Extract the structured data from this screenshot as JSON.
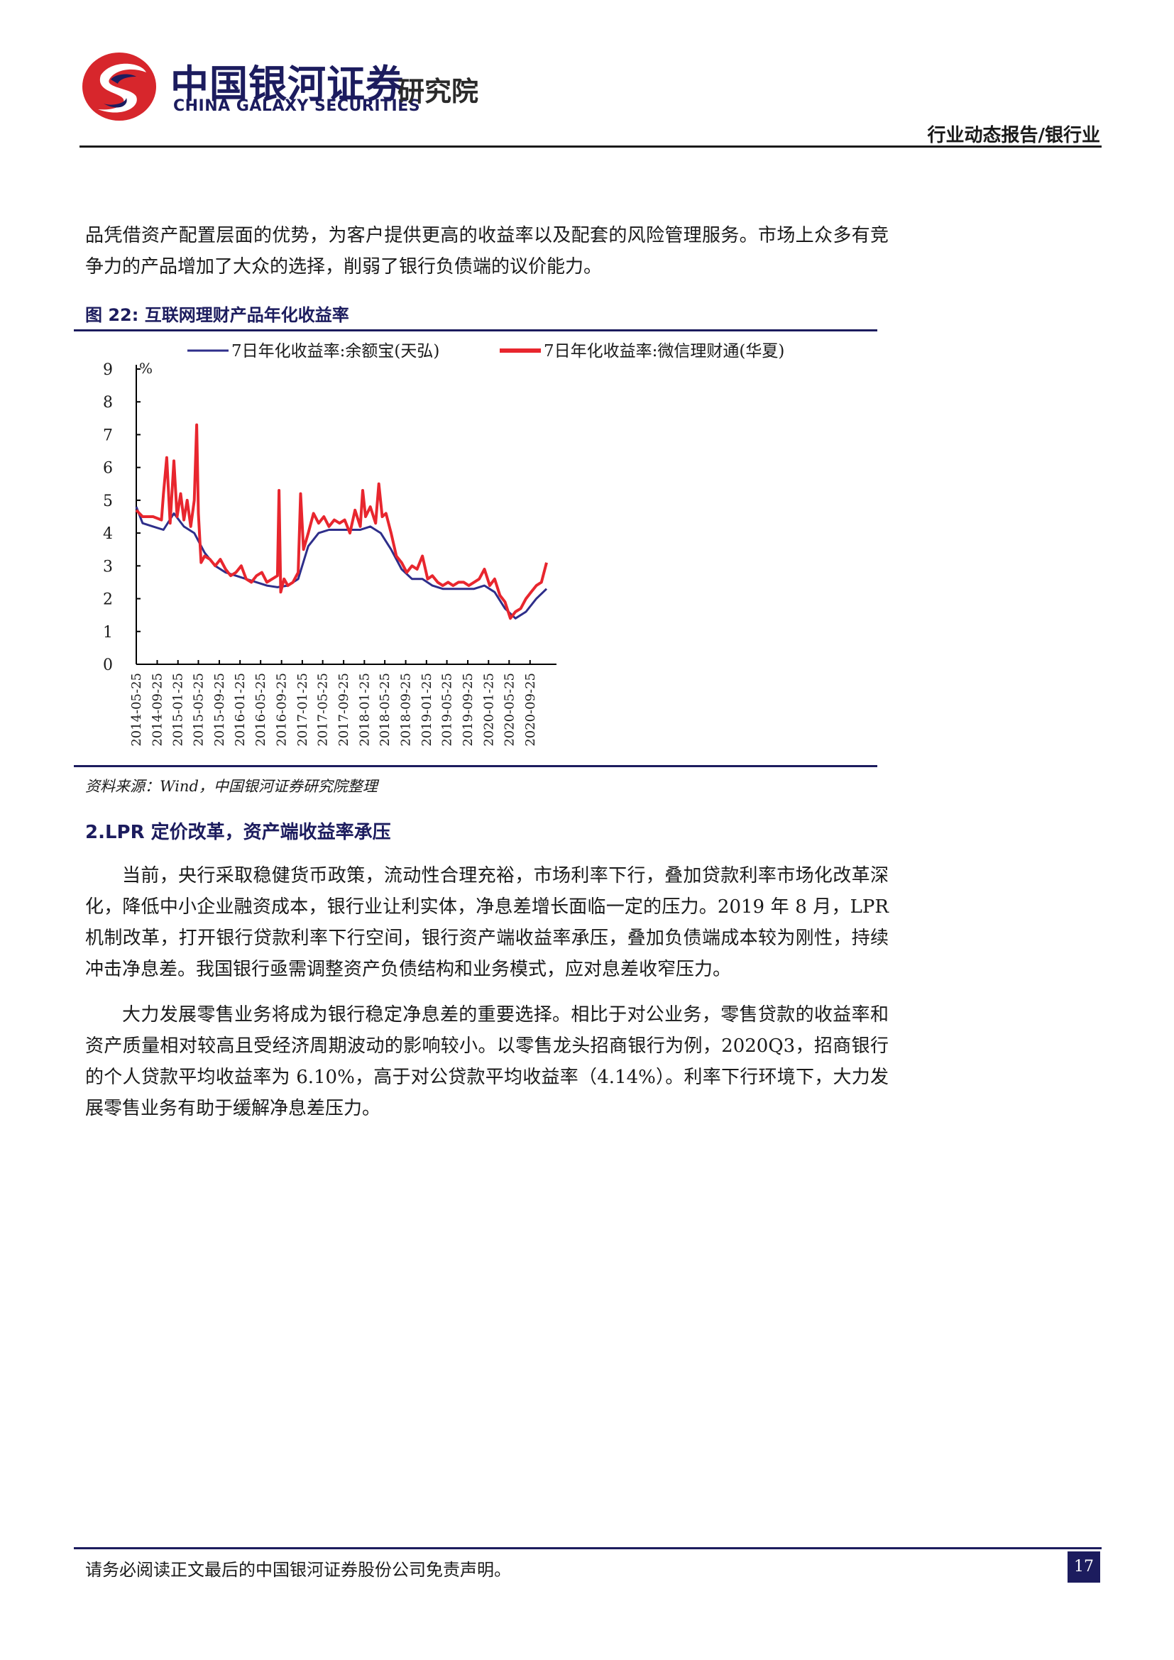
{
  "header": {
    "brand_cn": "中国银河证券",
    "brand_en": "CHINA GALAXY SECURITIES",
    "brand_institute": "研究院",
    "report_type": "行业动态报告/银行业",
    "colors": {
      "navy": "#1c1c5e",
      "red": "#d7262c"
    }
  },
  "body": {
    "para_1": "品凭借资产配置层面的优势，为客户提供更高的收益率以及配套的风险管理服务。市场上众多有竞争力的产品增加了大众的选择，削弱了银行负债端的议价能力。",
    "figure_title": "图 22:  互联网理财产品年化收益率",
    "figure_source": "资料来源：Wind，中国银河证券研究院整理",
    "section_heading": "2.LPR 定价改革，资产端收益率承压",
    "para_2": "当前，央行采取稳健货币政策，流动性合理充裕，市场利率下行，叠加贷款利率市场化改革深化，降低中小企业融资成本，银行业让利实体，净息差增长面临一定的压力。2019 年 8 月，LPR 机制改革，打开银行贷款利率下行空间，银行资产端收益率承压，叠加负债端成本较为刚性，持续冲击净息差。我国银行亟需调整资产负债结构和业务模式，应对息差收窄压力。",
    "para_3": "大力发展零售业务将成为银行稳定净息差的重要选择。相比于对公业务，零售贷款的收益率和资产质量相对较高且受经济周期波动的影响较小。以零售龙头招商银行为例，2020Q3，招商银行的个人贷款平均收益率为 6.10%，高于对公贷款平均收益率（4.14%）。利率下行环境下，大力发展零售业务有助于缓解净息差压力。"
  },
  "chart_data": {
    "type": "line",
    "title": "",
    "ylabel": "%",
    "xlabel": "",
    "ylim": [
      0,
      9
    ],
    "yticks": [
      0,
      1,
      2,
      3,
      4,
      5,
      6,
      7,
      8,
      9
    ],
    "xlim": [
      "2014-05-25",
      "2021-01-25"
    ],
    "xticks": [
      "2014-05-25",
      "2014-09-25",
      "2015-01-25",
      "2015-05-25",
      "2015-09-25",
      "2016-01-25",
      "2016-05-25",
      "2016-09-25",
      "2017-01-25",
      "2017-05-25",
      "2017-09-25",
      "2018-01-25",
      "2018-05-25",
      "2018-09-25",
      "2019-01-25",
      "2019-05-25",
      "2019-09-25",
      "2020-01-25",
      "2020-05-25",
      "2020-09-25"
    ],
    "legend_position": "top",
    "series": [
      {
        "name": "7日年化收益率:余额宝(天弘)",
        "color": "#2e2e8a",
        "x": [
          "2014-05-25",
          "2014-07-01",
          "2014-09-01",
          "2014-11-01",
          "2015-01-01",
          "2015-03-01",
          "2015-05-01",
          "2015-07-01",
          "2015-09-01",
          "2015-11-01",
          "2016-01-01",
          "2016-03-01",
          "2016-05-01",
          "2016-07-01",
          "2016-09-01",
          "2016-11-01",
          "2017-01-01",
          "2017-03-01",
          "2017-05-01",
          "2017-07-01",
          "2017-09-01",
          "2017-11-01",
          "2018-01-01",
          "2018-03-01",
          "2018-05-01",
          "2018-07-01",
          "2018-09-01",
          "2018-11-01",
          "2019-01-01",
          "2019-03-01",
          "2019-05-01",
          "2019-07-01",
          "2019-09-01",
          "2019-11-01",
          "2020-01-01",
          "2020-03-01",
          "2020-05-01",
          "2020-07-01",
          "2020-09-01",
          "2020-11-01",
          "2020-12-31"
        ],
        "values": [
          4.8,
          4.3,
          4.2,
          4.1,
          4.6,
          4.2,
          4.0,
          3.4,
          3.0,
          2.8,
          2.7,
          2.6,
          2.5,
          2.4,
          2.35,
          2.4,
          2.6,
          3.6,
          4.0,
          4.1,
          4.1,
          4.1,
          4.1,
          4.2,
          4.0,
          3.5,
          2.9,
          2.6,
          2.6,
          2.4,
          2.3,
          2.3,
          2.3,
          2.3,
          2.4,
          2.2,
          1.7,
          1.4,
          1.6,
          2.0,
          2.3
        ]
      },
      {
        "name": "7日年化收益率:微信理财通(华夏)",
        "color": "#e8262e",
        "x": [
          "2014-05-25",
          "2014-07-01",
          "2014-09-01",
          "2014-10-20",
          "2014-11-01",
          "2014-11-20",
          "2014-12-10",
          "2015-01-01",
          "2015-01-20",
          "2015-02-10",
          "2015-03-01",
          "2015-03-20",
          "2015-04-10",
          "2015-05-01",
          "2015-05-15",
          "2015-05-25",
          "2015-06-10",
          "2015-07-01",
          "2015-08-01",
          "2015-09-01",
          "2015-10-01",
          "2015-11-01",
          "2015-12-01",
          "2016-01-01",
          "2016-02-01",
          "2016-03-01",
          "2016-04-01",
          "2016-05-01",
          "2016-06-01",
          "2016-07-01",
          "2016-08-01",
          "2016-09-01",
          "2016-09-10",
          "2016-09-20",
          "2016-10-10",
          "2016-11-01",
          "2016-12-01",
          "2017-01-01",
          "2017-01-15",
          "2017-02-01",
          "2017-03-01",
          "2017-04-01",
          "2017-05-01",
          "2017-06-01",
          "2017-07-01",
          "2017-08-01",
          "2017-09-01",
          "2017-10-01",
          "2017-11-01",
          "2017-12-01",
          "2018-01-01",
          "2018-01-15",
          "2018-02-01",
          "2018-03-01",
          "2018-04-01",
          "2018-04-20",
          "2018-05-10",
          "2018-06-01",
          "2018-07-01",
          "2018-08-01",
          "2018-09-01",
          "2018-10-01",
          "2018-11-01",
          "2018-12-01",
          "2019-01-01",
          "2019-02-01",
          "2019-03-01",
          "2019-04-01",
          "2019-05-01",
          "2019-06-01",
          "2019-07-01",
          "2019-08-01",
          "2019-09-01",
          "2019-10-01",
          "2019-11-01",
          "2019-12-01",
          "2020-01-01",
          "2020-02-01",
          "2020-03-01",
          "2020-04-01",
          "2020-05-01",
          "2020-06-01",
          "2020-07-01",
          "2020-08-01",
          "2020-09-01",
          "2020-10-01",
          "2020-11-01",
          "2020-12-01",
          "2020-12-31"
        ],
        "values": [
          4.7,
          4.5,
          4.5,
          4.4,
          5.2,
          6.3,
          4.3,
          6.2,
          4.5,
          5.2,
          4.4,
          5.0,
          4.2,
          5.0,
          7.3,
          4.6,
          3.1,
          3.3,
          3.2,
          3.0,
          3.2,
          2.9,
          2.7,
          2.8,
          3.0,
          2.6,
          2.5,
          2.7,
          2.8,
          2.5,
          2.6,
          2.7,
          5.3,
          2.2,
          2.6,
          2.4,
          2.5,
          2.8,
          5.2,
          3.5,
          4.0,
          4.6,
          4.3,
          4.5,
          4.2,
          4.4,
          4.3,
          4.4,
          4.0,
          4.7,
          4.2,
          5.3,
          4.5,
          4.8,
          4.3,
          5.5,
          4.5,
          4.6,
          4.0,
          3.3,
          3.1,
          2.8,
          3.0,
          2.9,
          3.3,
          2.6,
          2.7,
          2.5,
          2.4,
          2.5,
          2.4,
          2.5,
          2.5,
          2.4,
          2.5,
          2.6,
          2.9,
          2.4,
          2.6,
          2.1,
          1.9,
          1.4,
          1.6,
          1.7,
          2.0,
          2.2,
          2.4,
          2.5,
          3.1
        ]
      }
    ]
  },
  "footer": {
    "disclaimer": "请务必阅读正文最后的中国银河证券股份公司免责声明。",
    "page_number": "17"
  }
}
